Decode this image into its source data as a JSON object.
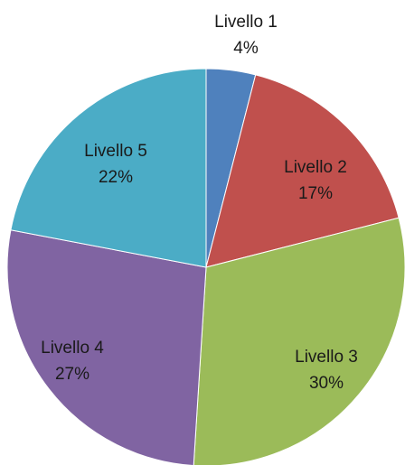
{
  "chart_data": {
    "type": "pie",
    "categories": [
      "Livello 1",
      "Livello 2",
      "Livello 3",
      "Livello 4",
      "Livello 5"
    ],
    "values": [
      4,
      17,
      30,
      27,
      22
    ],
    "data_labels": [
      "4%",
      "17%",
      "30%",
      "27%",
      "22%"
    ],
    "colors": [
      "#4F81BD",
      "#C0504D",
      "#9BBB59",
      "#8064A2",
      "#4BACC6"
    ],
    "start_angle_deg": 0,
    "direction": "clockwise",
    "legend": "none",
    "title": ""
  }
}
